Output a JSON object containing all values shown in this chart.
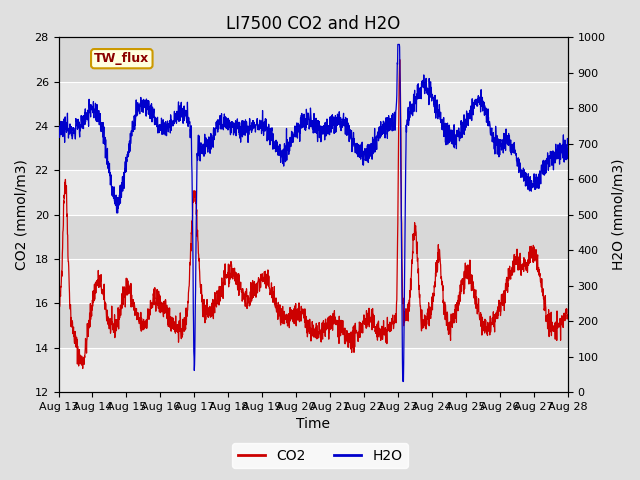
{
  "title": "LI7500 CO2 and H2O",
  "xlabel": "Time",
  "ylabel_left": "CO2 (mmol/m3)",
  "ylabel_right": "H2O (mmol/m3)",
  "xlim_days": [
    0,
    15
  ],
  "ylim_left": [
    12,
    28
  ],
  "ylim_right": [
    0,
    1000
  ],
  "yticks_left": [
    12,
    14,
    16,
    18,
    20,
    22,
    24,
    26,
    28
  ],
  "yticks_right": [
    0,
    100,
    200,
    300,
    400,
    500,
    600,
    700,
    800,
    900,
    1000
  ],
  "xtick_labels": [
    "Aug 13",
    "Aug 14",
    "Aug 15",
    "Aug 16",
    "Aug 17",
    "Aug 18",
    "Aug 19",
    "Aug 20",
    "Aug 21",
    "Aug 22",
    "Aug 23",
    "Aug 24",
    "Aug 25",
    "Aug 26",
    "Aug 27",
    "Aug 28"
  ],
  "co2_color": "#cc0000",
  "h2o_color": "#0000cc",
  "fig_facecolor": "#e0e0e0",
  "plot_facecolor": "#e8e8e8",
  "title_fontsize": 12,
  "axis_label_fontsize": 10,
  "tick_fontsize": 8,
  "legend_label_co2": "CO2",
  "legend_label_h2o": "H2O",
  "annotation_text": "TW_flux"
}
